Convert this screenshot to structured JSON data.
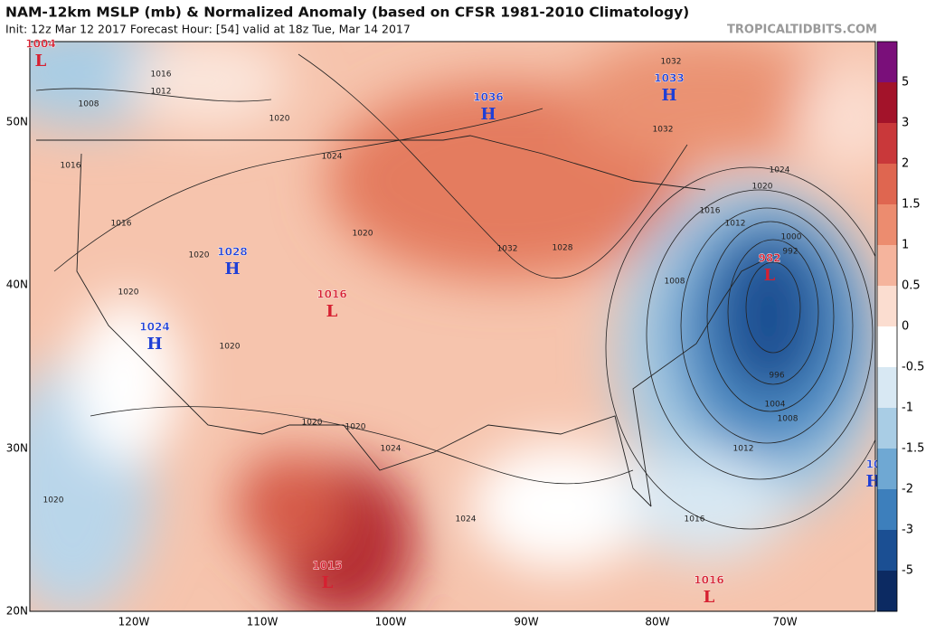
{
  "header": {
    "title": "NAM-12km MSLP (mb) & Normalized Anomaly (based on CFSR 1981-2010 Climatology)",
    "subtitle": "Init: 12z Mar 12 2017   Forecast Hour: [54]   valid at 18z Tue, Mar 14 2017",
    "credit": "TROPICALTIDBITS.COM"
  },
  "map": {
    "lat_labels": [
      "50N",
      "40N",
      "30N",
      "20N"
    ],
    "lon_labels": [
      "120W",
      "110W",
      "100W",
      "90W",
      "80W",
      "70W"
    ],
    "centers": [
      {
        "symbol": "L",
        "value": "1004"
      },
      {
        "symbol": "H",
        "value": "1036"
      },
      {
        "symbol": "H",
        "value": "1033"
      },
      {
        "symbol": "L",
        "value": "982"
      },
      {
        "symbol": "H",
        "value": "1028"
      },
      {
        "symbol": "L",
        "value": "1016"
      },
      {
        "symbol": "H",
        "value": "1024"
      },
      {
        "symbol": "L",
        "value": "1015"
      },
      {
        "symbol": "L",
        "value": "1016"
      },
      {
        "symbol": "H",
        "value": "10"
      }
    ],
    "contour_labels": [
      "1012",
      "1016",
      "1008",
      "1020",
      "1024",
      "1016",
      "1020",
      "1020",
      "1032",
      "1028",
      "1032",
      "1032",
      "1024",
      "1020",
      "1016",
      "1012",
      "1008",
      "996",
      "1004",
      "1008",
      "1012",
      "1016",
      "1020",
      "1024",
      "1024",
      "1020",
      "1020",
      "1020",
      "1020",
      "1016",
      "1000",
      "992"
    ]
  },
  "colorbar": {
    "ticks": [
      "5",
      "3",
      "2",
      "1.5",
      "1",
      "0.5",
      "0",
      "-0.5",
      "-1",
      "-1.5",
      "-2",
      "-3",
      "-5"
    ],
    "colors": [
      "#7a0f7a",
      "#a3132a",
      "#c9383a",
      "#df6650",
      "#ec8c6f",
      "#f5b49d",
      "#fbddd0",
      "#ffffff",
      "#d8e8f3",
      "#a9cde5",
      "#6fa8d3",
      "#3d7fbc",
      "#1b4f93",
      "#0c2a62"
    ],
    "low_color": "#d62031",
    "high_color": "#1f3fd6"
  }
}
